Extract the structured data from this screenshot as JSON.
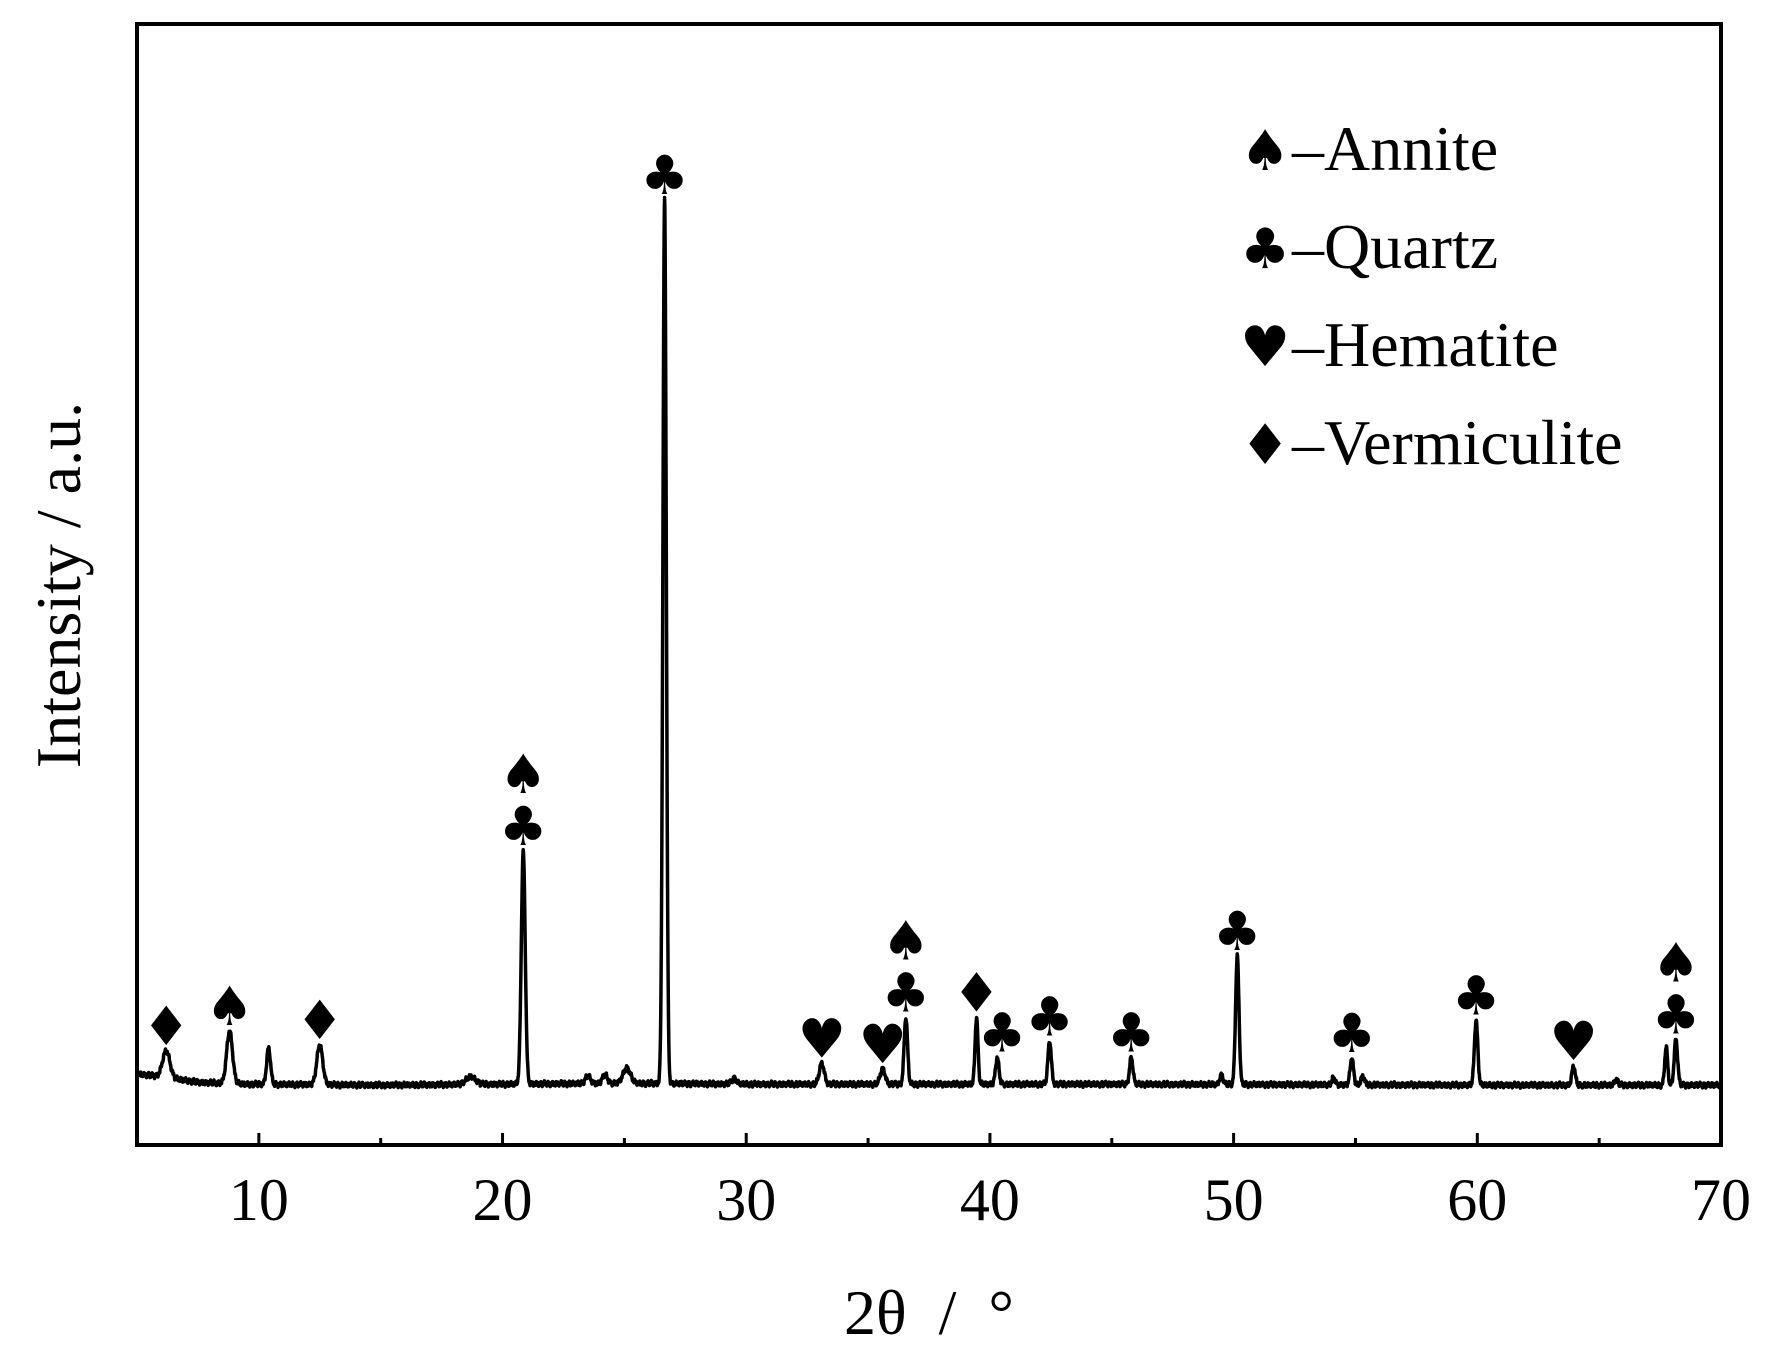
{
  "chart_data": {
    "type": "line",
    "xlabel": "2θ  /  °",
    "ylabel": "Intensity / a.u.",
    "xlim": [
      5,
      70
    ],
    "ylim": [
      -60,
      1000
    ],
    "xticks": [
      10,
      20,
      30,
      40,
      50,
      60,
      70
    ],
    "xticks_minor": [
      15,
      25,
      35,
      45,
      55,
      65
    ],
    "y_tick_labels_shown": false,
    "grid": false,
    "legend_position": "top-right",
    "legend": [
      {
        "symbol": "♠",
        "symbol_name": "spade-icon",
        "label": "–Annite"
      },
      {
        "symbol": "♣",
        "symbol_name": "club-icon",
        "label": "–Quartz"
      },
      {
        "symbol": "♥",
        "symbol_name": "heart-icon",
        "label": "–Hematite"
      },
      {
        "symbol": "♦",
        "symbol_name": "diamond-icon",
        "label": "–Vermiculite"
      }
    ],
    "baseline": [
      [
        5,
        14
      ],
      [
        6.2,
        10
      ],
      [
        7.5,
        5
      ],
      [
        9.5,
        3
      ],
      [
        15,
        2
      ],
      [
        25,
        4
      ],
      [
        30,
        3
      ],
      [
        45,
        3
      ],
      [
        60,
        2
      ],
      [
        70,
        2
      ]
    ],
    "peaks": [
      {
        "x": 6.2,
        "y": 28,
        "w": 0.15
      },
      {
        "x": 8.8,
        "y": 55,
        "w": 0.12
      },
      {
        "x": 10.4,
        "y": 38,
        "w": 0.08
      },
      {
        "x": 12.5,
        "y": 42,
        "w": 0.12
      },
      {
        "x": 18.7,
        "y": 8,
        "w": 0.2
      },
      {
        "x": 20.85,
        "y": 245,
        "w": 0.08
      },
      {
        "x": 23.5,
        "y": 8,
        "w": 0.1
      },
      {
        "x": 24.2,
        "y": 9,
        "w": 0.1
      },
      {
        "x": 25.1,
        "y": 16,
        "w": 0.15
      },
      {
        "x": 26.65,
        "y": 930,
        "w": 0.07
      },
      {
        "x": 29.5,
        "y": 6,
        "w": 0.1
      },
      {
        "x": 33.1,
        "y": 22,
        "w": 0.1
      },
      {
        "x": 35.6,
        "y": 16,
        "w": 0.1
      },
      {
        "x": 36.55,
        "y": 70,
        "w": 0.07
      },
      {
        "x": 39.45,
        "y": 70,
        "w": 0.06
      },
      {
        "x": 40.3,
        "y": 28,
        "w": 0.07
      },
      {
        "x": 42.45,
        "y": 45,
        "w": 0.07
      },
      {
        "x": 45.8,
        "y": 28,
        "w": 0.07
      },
      {
        "x": 49.5,
        "y": 10,
        "w": 0.07
      },
      {
        "x": 50.15,
        "y": 135,
        "w": 0.07
      },
      {
        "x": 54.1,
        "y": 7,
        "w": 0.07
      },
      {
        "x": 54.85,
        "y": 28,
        "w": 0.07
      },
      {
        "x": 55.3,
        "y": 9,
        "w": 0.07
      },
      {
        "x": 59.95,
        "y": 68,
        "w": 0.07
      },
      {
        "x": 63.95,
        "y": 20,
        "w": 0.07
      },
      {
        "x": 65.7,
        "y": 6,
        "w": 0.07
      },
      {
        "x": 67.75,
        "y": 40,
        "w": 0.06
      },
      {
        "x": 68.15,
        "y": 48,
        "w": 0.07
      }
    ],
    "annotations": [
      {
        "x": 6.2,
        "symbols": [
          "♦"
        ]
      },
      {
        "x": 8.8,
        "symbols": [
          "♠"
        ]
      },
      {
        "x": 12.5,
        "symbols": [
          "♦"
        ]
      },
      {
        "x": 20.85,
        "symbols": [
          "♣",
          "♠"
        ]
      },
      {
        "x": 26.65,
        "symbols": [
          "♣"
        ]
      },
      {
        "x": 33.1,
        "symbols": [
          "♥"
        ]
      },
      {
        "x": 35.6,
        "symbols": [
          "♥"
        ]
      },
      {
        "x": 36.55,
        "symbols": [
          "♣",
          "♠"
        ]
      },
      {
        "x": 39.45,
        "symbols": [
          "♦"
        ]
      },
      {
        "x": 40.5,
        "symbols": [
          "♣"
        ]
      },
      {
        "x": 42.45,
        "symbols": [
          "♣"
        ]
      },
      {
        "x": 45.8,
        "symbols": [
          "♣"
        ]
      },
      {
        "x": 50.15,
        "symbols": [
          "♣"
        ]
      },
      {
        "x": 54.85,
        "symbols": [
          "♣"
        ]
      },
      {
        "x": 59.95,
        "symbols": [
          "♣"
        ]
      },
      {
        "x": 63.95,
        "symbols": [
          "♥"
        ]
      },
      {
        "x": 68.15,
        "symbols": [
          "♣",
          "♠"
        ]
      }
    ]
  }
}
